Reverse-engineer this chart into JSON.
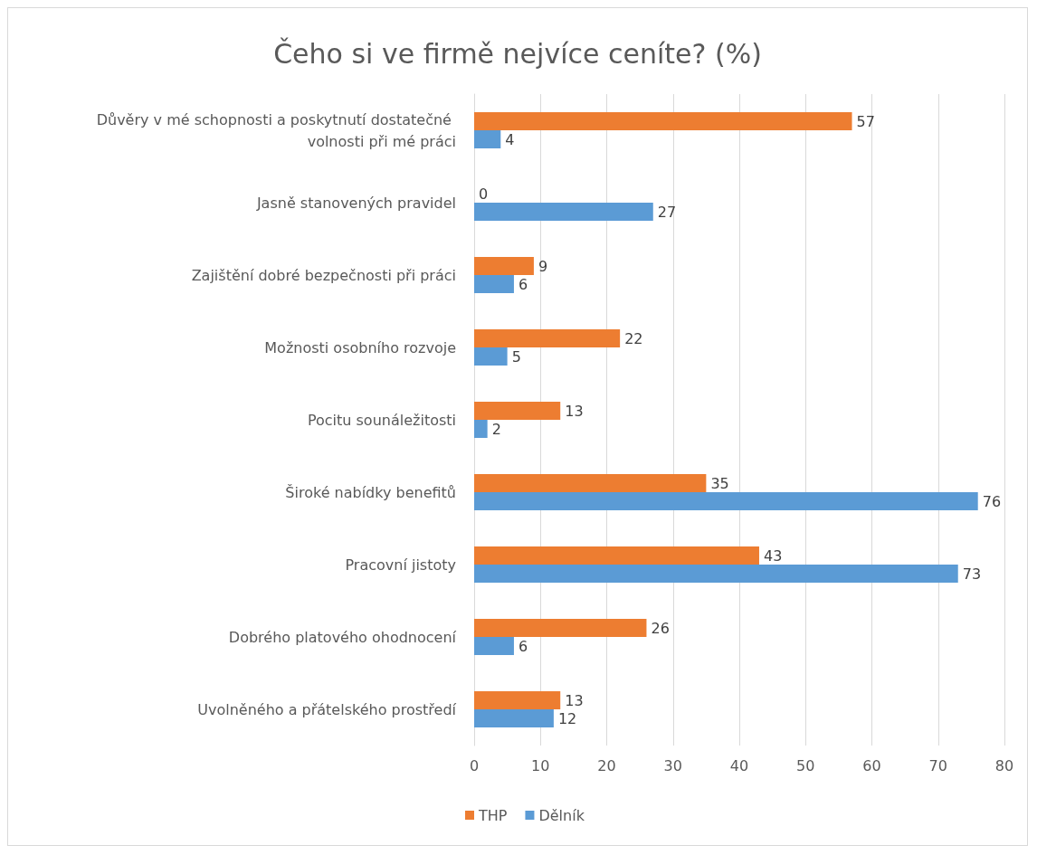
{
  "chart_data": {
    "type": "bar",
    "orientation": "horizontal",
    "title": "Čeho si ve firmě nejvíce ceníte? (%)",
    "categories": [
      "Důvěry v mé schopnosti a poskytnutí dostatečné volnosti při mé práci",
      "Jasně stanovených pravidel",
      "Zajištění dobré bezpečnosti při práci",
      "Možnosti osobního rozvoje",
      "Pocitu sounáležitosti",
      "Široké nabídky benefitů",
      "Pracovní jistoty",
      "Dobrého platového ohodnocení",
      "Uvolněného a přátelského prostředí"
    ],
    "series": [
      {
        "name": "THP",
        "color": "#ed7d31",
        "values": [
          57,
          0,
          9,
          22,
          13,
          35,
          43,
          26,
          13
        ]
      },
      {
        "name": "Dělník",
        "color": "#5b9bd5",
        "values": [
          4,
          27,
          6,
          5,
          2,
          76,
          73,
          6,
          12
        ]
      }
    ],
    "xlim": [
      0,
      80
    ],
    "xticks": [
      0,
      10,
      20,
      30,
      40,
      50,
      60,
      70,
      80
    ],
    "grid": "x",
    "legend": "bottom left",
    "data_labels": true
  }
}
